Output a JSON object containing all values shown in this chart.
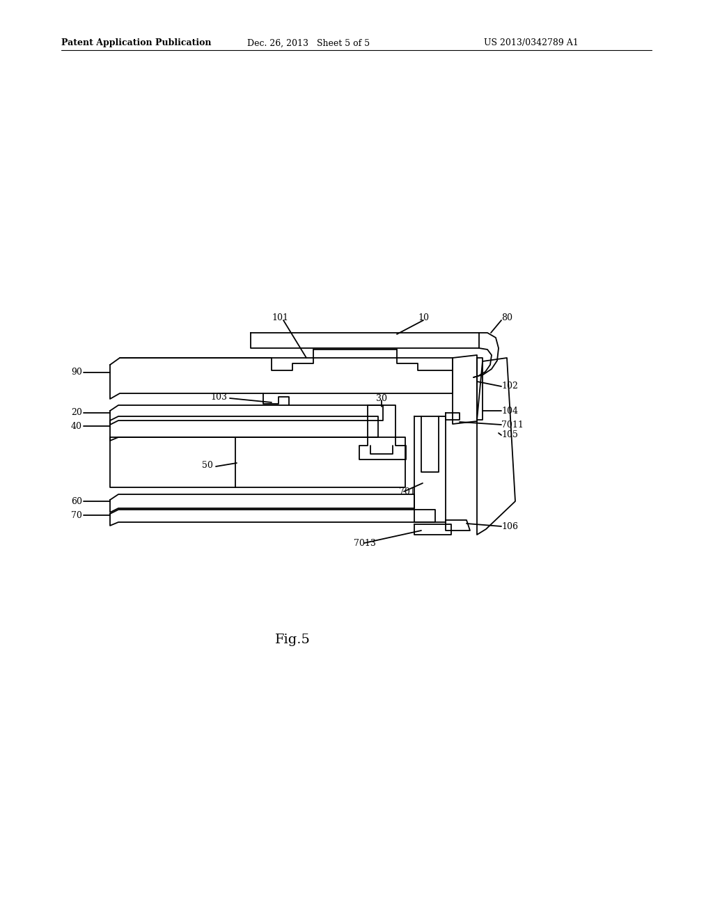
{
  "bg_color": "#ffffff",
  "lc": "#000000",
  "lw": 1.3,
  "header_left": "Patent Application Publication",
  "header_mid": "Dec. 26, 2013   Sheet 5 of 5",
  "header_right": "US 2013/0342789 A1",
  "fig_label": "Fig.5"
}
